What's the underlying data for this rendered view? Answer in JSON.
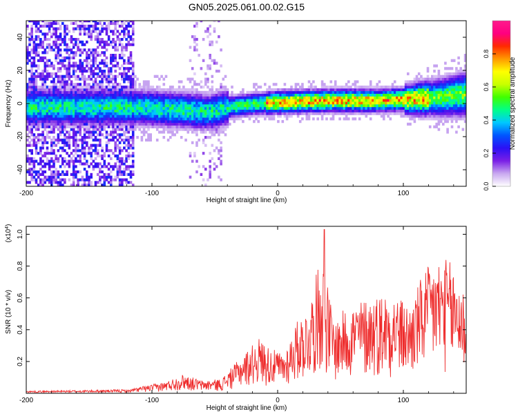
{
  "title": "GN05.2025.061.00.02.G15",
  "chart_data": [
    {
      "type": "heatmap",
      "xlabel": "Height of straight line (km)",
      "ylabel": "Frequency (Hz)",
      "xlim": [
        -200,
        150
      ],
      "ylim": [
        -50,
        50
      ],
      "xticks": [
        -200,
        -100,
        0,
        100
      ],
      "yticks": [
        -40,
        -20,
        0,
        20,
        40
      ],
      "colorbar": {
        "label": "Normalized spectral amplitude",
        "range": [
          0,
          1
        ],
        "ticks": [
          "0.0",
          "0.2",
          "0.4",
          "0.6",
          "0.8"
        ],
        "colors": [
          "#ffffff",
          "#c9a8f0",
          "#7a1fe6",
          "#2b10f5",
          "#0055ff",
          "#00c8ff",
          "#00ff88",
          "#40ff00",
          "#c8ff00",
          "#ffff00",
          "#ff9900",
          "#ff2a00",
          "#ff0080",
          "#ff1a8c"
        ]
      },
      "ridge": {
        "description_points": [
          [
            -115,
            -3
          ],
          [
            -90,
            -4
          ],
          [
            -70,
            -5
          ],
          [
            -55,
            -6
          ],
          [
            -40,
            -3
          ],
          [
            -20,
            -1
          ],
          [
            0,
            0
          ],
          [
            40,
            1
          ],
          [
            80,
            1
          ],
          [
            110,
            2
          ],
          [
            130,
            3
          ],
          [
            150,
            5
          ]
        ],
        "peak_amplitude_range": [
          0,
          150
        ]
      },
      "grid": false
    },
    {
      "type": "line",
      "xlabel": "Height of straight line (km)",
      "ylabel": "SNR (10 * v/v)",
      "yscale_label": "(x10",
      "yscale_exp": "4",
      "yscale_close": ")",
      "xlim": [
        -200,
        150
      ],
      "ylim": [
        0,
        1.05
      ],
      "xticks": [
        -200,
        -100,
        0,
        100
      ],
      "yticks": [
        "0.2",
        "0.4",
        "0.6",
        "0.8",
        "1.0"
      ],
      "series": [
        {
          "color": "#ee2b2b",
          "envelope": [
            [
              -200,
              0.01
            ],
            [
              -150,
              0.015
            ],
            [
              -120,
              0.02
            ],
            [
              -110,
              0.04
            ],
            [
              -90,
              0.07
            ],
            [
              -75,
              0.12
            ],
            [
              -60,
              0.08
            ],
            [
              -45,
              0.09
            ],
            [
              -30,
              0.22
            ],
            [
              -15,
              0.35
            ],
            [
              -5,
              0.28
            ],
            [
              5,
              0.25
            ],
            [
              15,
              0.45
            ],
            [
              25,
              0.55
            ],
            [
              35,
              0.9
            ],
            [
              45,
              0.45
            ],
            [
              55,
              0.55
            ],
            [
              70,
              0.6
            ],
            [
              90,
              0.65
            ],
            [
              105,
              0.55
            ],
            [
              115,
              0.75
            ],
            [
              125,
              0.85
            ],
            [
              135,
              0.85
            ],
            [
              145,
              0.75
            ],
            [
              150,
              0.6
            ]
          ],
          "peak": [
            37,
            1.03
          ]
        }
      ],
      "grid": false
    }
  ],
  "axes": {
    "top_xtick_labels": [
      "-200",
      "-100",
      "0",
      "100"
    ],
    "top_ytick_labels": [
      "-40",
      "-20",
      "0",
      "20",
      "40"
    ],
    "bottom_xtick_labels": [
      "-200",
      "-100",
      "0",
      "100"
    ]
  }
}
